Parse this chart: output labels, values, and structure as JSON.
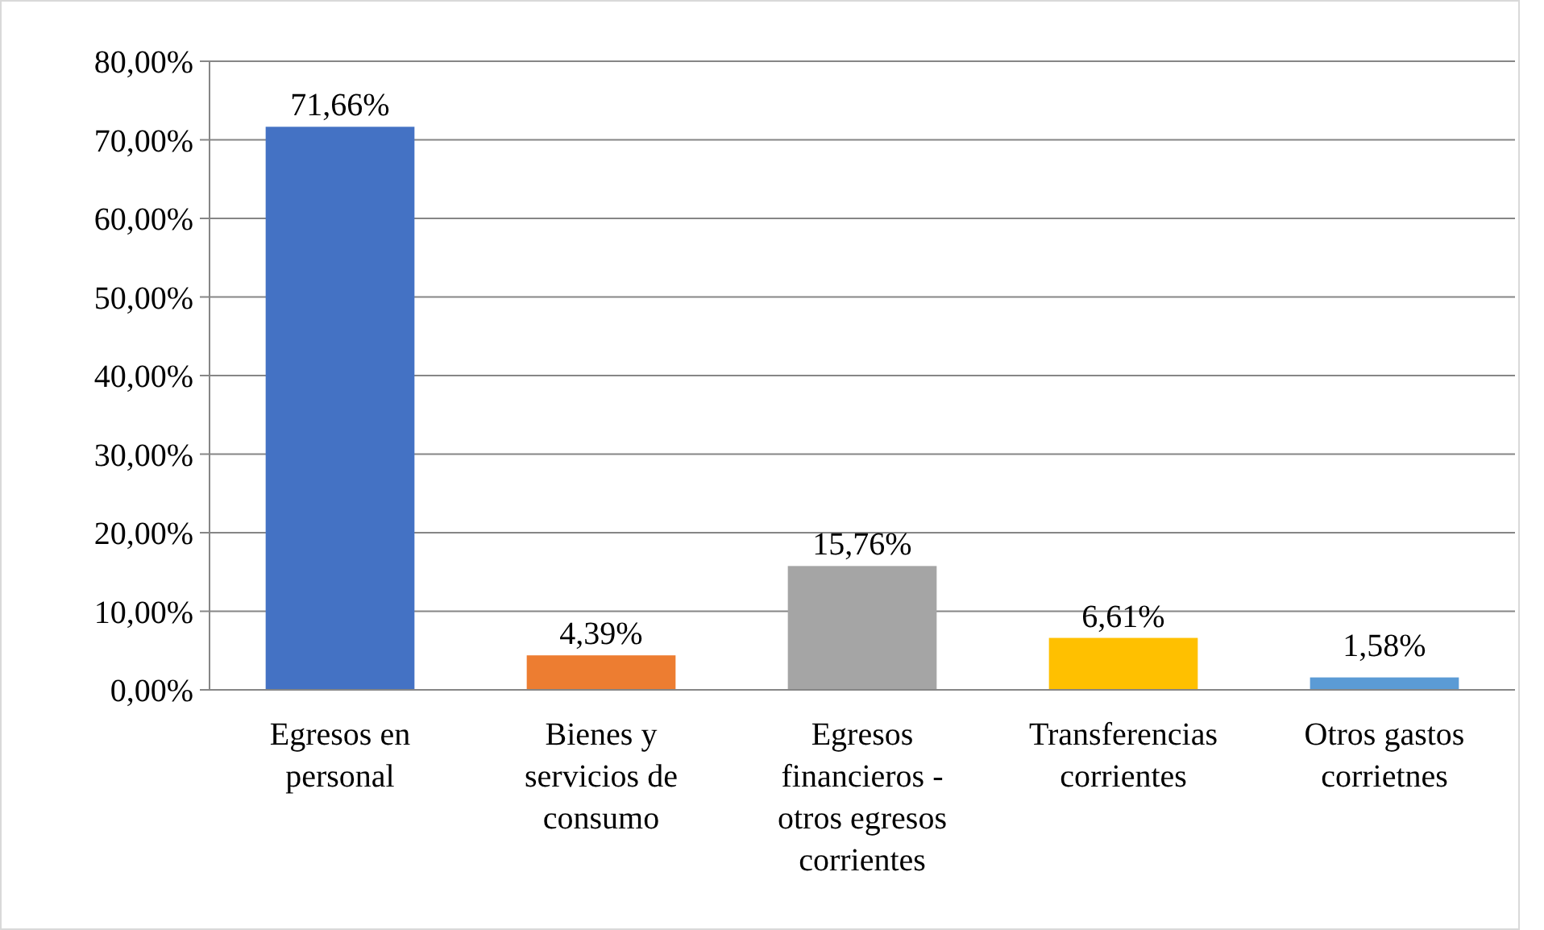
{
  "chart_data": {
    "type": "bar",
    "categories": [
      "Egresos en personal",
      "Bienes y servicios de consumo",
      "Egresos financieros - otros egresos corrientes",
      "Transferencias corrientes",
      "Otros gastos corrietnes"
    ],
    "values": [
      71.66,
      4.39,
      15.76,
      6.61,
      1.58
    ],
    "colors": [
      "#4472c4",
      "#ed7d31",
      "#a5a5a5",
      "#ffc000",
      "#5b9bd5"
    ],
    "value_labels": [
      "71,66%",
      "4,39%",
      "15,76%",
      "6,61%",
      "1,58%"
    ],
    "ylim": [
      0,
      80
    ],
    "yticks": [
      {
        "value": 0,
        "label": "0,00%"
      },
      {
        "value": 10,
        "label": "10,00%"
      },
      {
        "value": 20,
        "label": "20,00%"
      },
      {
        "value": 30,
        "label": "30,00%"
      },
      {
        "value": 40,
        "label": "40,00%"
      },
      {
        "value": 50,
        "label": "50,00%"
      },
      {
        "value": 60,
        "label": "60,00%"
      },
      {
        "value": 70,
        "label": "70,00%"
      },
      {
        "value": 80,
        "label": "80,00%"
      }
    ],
    "grid": "y"
  }
}
